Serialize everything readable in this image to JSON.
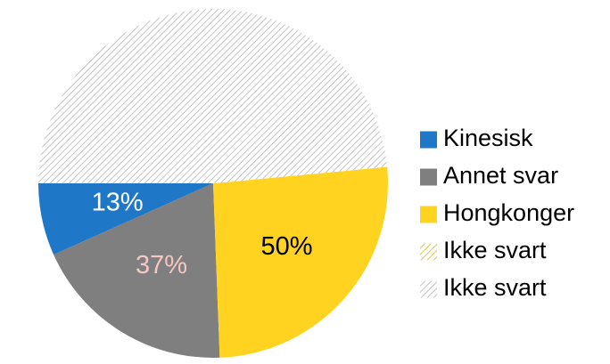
{
  "chart_data": {
    "type": "pie",
    "title": "",
    "start_angle_deg": 180,
    "direction": "counterclockwise",
    "legend_position": "right",
    "slices": [
      {
        "name": "Kinesisk",
        "value": 6.7,
        "label": "13%",
        "color": "#1f77c8",
        "pattern": "solid",
        "label_color": "#ffffff"
      },
      {
        "name": "Annet svar",
        "value": 18.9,
        "label": "37%",
        "color": "#7f7f7f",
        "pattern": "solid",
        "label_color": "#f4c7c3"
      },
      {
        "name": "Hongkonger",
        "value": 25.9,
        "label": "50%",
        "color": "#ffd320",
        "pattern": "solid",
        "label_color": "#000000"
      },
      {
        "name": "Ikke svart",
        "value": 0.0,
        "label": "",
        "color": "#ffd320",
        "pattern": "hatch",
        "label_color": "#000000"
      },
      {
        "name": "Ikke svart",
        "value": 48.5,
        "label": "",
        "color": "#a6a6a6",
        "pattern": "hatch",
        "label_color": "#000000"
      }
    ]
  }
}
